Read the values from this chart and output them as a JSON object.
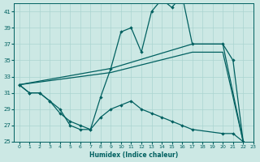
{
  "xlabel": "Humidex (Indice chaleur)",
  "bg_color": "#cce8e4",
  "grid_color": "#aad4d0",
  "line_color": "#006060",
  "xlim": [
    -0.5,
    23
  ],
  "ylim": [
    25,
    42
  ],
  "yticks": [
    25,
    27,
    29,
    31,
    33,
    35,
    37,
    39,
    41
  ],
  "xticks": [
    0,
    1,
    2,
    3,
    4,
    5,
    6,
    7,
    8,
    9,
    10,
    11,
    12,
    13,
    14,
    15,
    16,
    17,
    18,
    19,
    20,
    21,
    22,
    23
  ],
  "curve_peak_x": [
    0,
    1,
    2,
    3,
    4,
    5,
    6,
    7,
    8,
    9,
    10,
    11,
    12,
    13,
    14,
    15,
    16,
    17,
    20,
    21,
    22
  ],
  "curve_peak_y": [
    32,
    31,
    31,
    30,
    29,
    27,
    26.5,
    26.5,
    30.5,
    34,
    38.5,
    39,
    36,
    41,
    42.5,
    41.5,
    43,
    37,
    37,
    35,
    25
  ],
  "curve_lower_x": [
    0,
    1,
    2,
    3,
    4,
    5,
    6,
    7,
    8,
    9,
    10,
    11,
    12,
    13,
    14,
    15,
    16,
    17,
    20,
    21,
    22
  ],
  "curve_lower_y": [
    32,
    31,
    31,
    30,
    28.5,
    27.5,
    27,
    26.5,
    28,
    29,
    29.5,
    30,
    29,
    28.5,
    28,
    27.5,
    27,
    26.5,
    26,
    26,
    25
  ],
  "line_upper_x": [
    0,
    9,
    17,
    20,
    22
  ],
  "line_upper_y": [
    32,
    34,
    37,
    37,
    25
  ],
  "line_lower_x": [
    0,
    9,
    17,
    20,
    22
  ],
  "line_lower_y": [
    32,
    33.5,
    36,
    36,
    25
  ]
}
